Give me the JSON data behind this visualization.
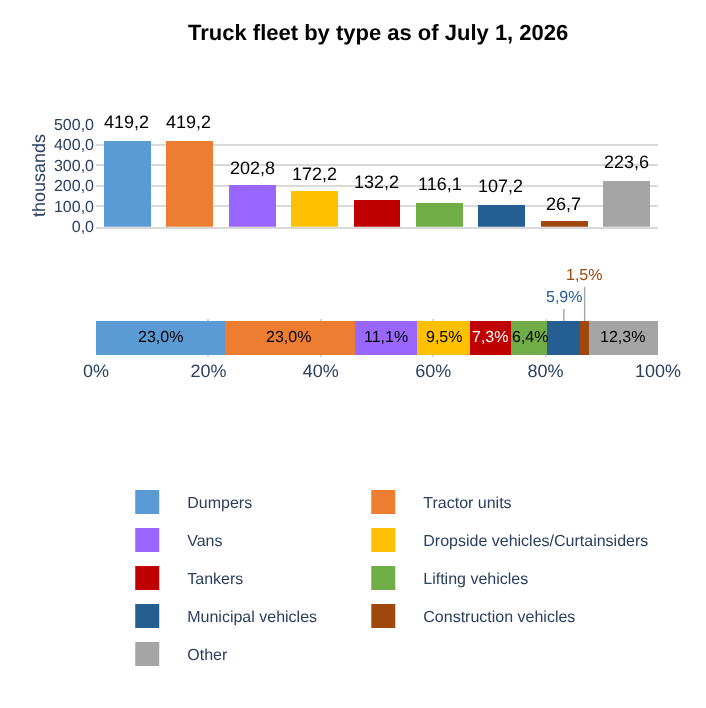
{
  "chart_data": [
    {
      "type": "bar",
      "title": "Truck fleet by type as of July 1, 2026",
      "ylabel": "thousands",
      "categories": [
        null,
        null,
        null,
        null,
        null,
        null,
        null,
        null,
        null
      ],
      "values": [
        419.2,
        419.2,
        202.8,
        172.2,
        132.2,
        116.1,
        107.2,
        26.7,
        223.6
      ],
      "colors": [
        "#5b9bd5",
        "#ed7d31",
        "#9966ff",
        "#ffc000",
        "#c00000",
        "#70ad47",
        "#255e91",
        "#9e480e",
        "#a5a5a5"
      ],
      "value_labels": [
        "419,2",
        "419,2",
        "202,8",
        "172,2",
        "132,2",
        "116,1",
        "107,2",
        "26,7",
        "223,6"
      ],
      "ylim": [
        0,
        500
      ],
      "yticks": [
        {
          "value": 0,
          "label": "0,0"
        },
        {
          "value": 100,
          "label": "100,0"
        },
        {
          "value": 200,
          "label": "200,0"
        },
        {
          "value": 300,
          "label": "300,0"
        },
        {
          "value": 400,
          "label": "400,0"
        },
        {
          "value": 500,
          "label": "500,0"
        }
      ],
      "grid": "y",
      "tick_labels": "y"
    },
    {
      "type": "bar",
      "orientation": "horizontal",
      "stacked": true,
      "categories": [
        null
      ],
      "series": [
        {
          "name": "Dumpers",
          "color": "#5b9bd5",
          "values": [
            23.0
          ],
          "value_labels": [
            "23,0%"
          ]
        },
        {
          "name": "Tractor units",
          "color": "#ed7d31",
          "values": [
            23.0
          ],
          "value_labels": [
            "23,0%"
          ]
        },
        {
          "name": "Vans",
          "color": "#9966ff",
          "values": [
            11.1
          ],
          "value_labels": [
            "11,1%"
          ]
        },
        {
          "name": "Dropside vehicles/Curtainsiders",
          "color": "#ffc000",
          "values": [
            9.5
          ],
          "value_labels": [
            "9,5%"
          ]
        },
        {
          "name": "Tankers",
          "color": "#c00000",
          "values": [
            7.3
          ],
          "value_labels": [
            "7,3%"
          ]
        },
        {
          "name": "Lifting vehicles",
          "color": "#70ad47",
          "values": [
            6.4
          ],
          "value_labels": [
            "6,4%"
          ]
        },
        {
          "name": "Municipal vehicles",
          "color": "#255e91",
          "values": [
            5.9
          ],
          "value_labels": [
            "5,9%"
          ]
        },
        {
          "name": "Construction vehicles",
          "color": "#9e480e",
          "values": [
            1.5
          ],
          "value_labels": [
            "1,5%"
          ]
        },
        {
          "name": "Other",
          "color": "#a5a5a5",
          "values": [
            12.3
          ],
          "value_labels": [
            "12,3%"
          ]
        }
      ],
      "xlim": [
        0,
        100
      ],
      "xticks": [
        {
          "value": 0,
          "label": "0%"
        },
        {
          "value": 20,
          "label": "20%"
        },
        {
          "value": 40,
          "label": "40%"
        },
        {
          "value": 60,
          "label": "60%"
        },
        {
          "value": 80,
          "label": "80%"
        },
        {
          "value": 100,
          "label": "100%"
        }
      ],
      "grid": "x",
      "tick_labels": "x",
      "legend": "bottom"
    }
  ]
}
